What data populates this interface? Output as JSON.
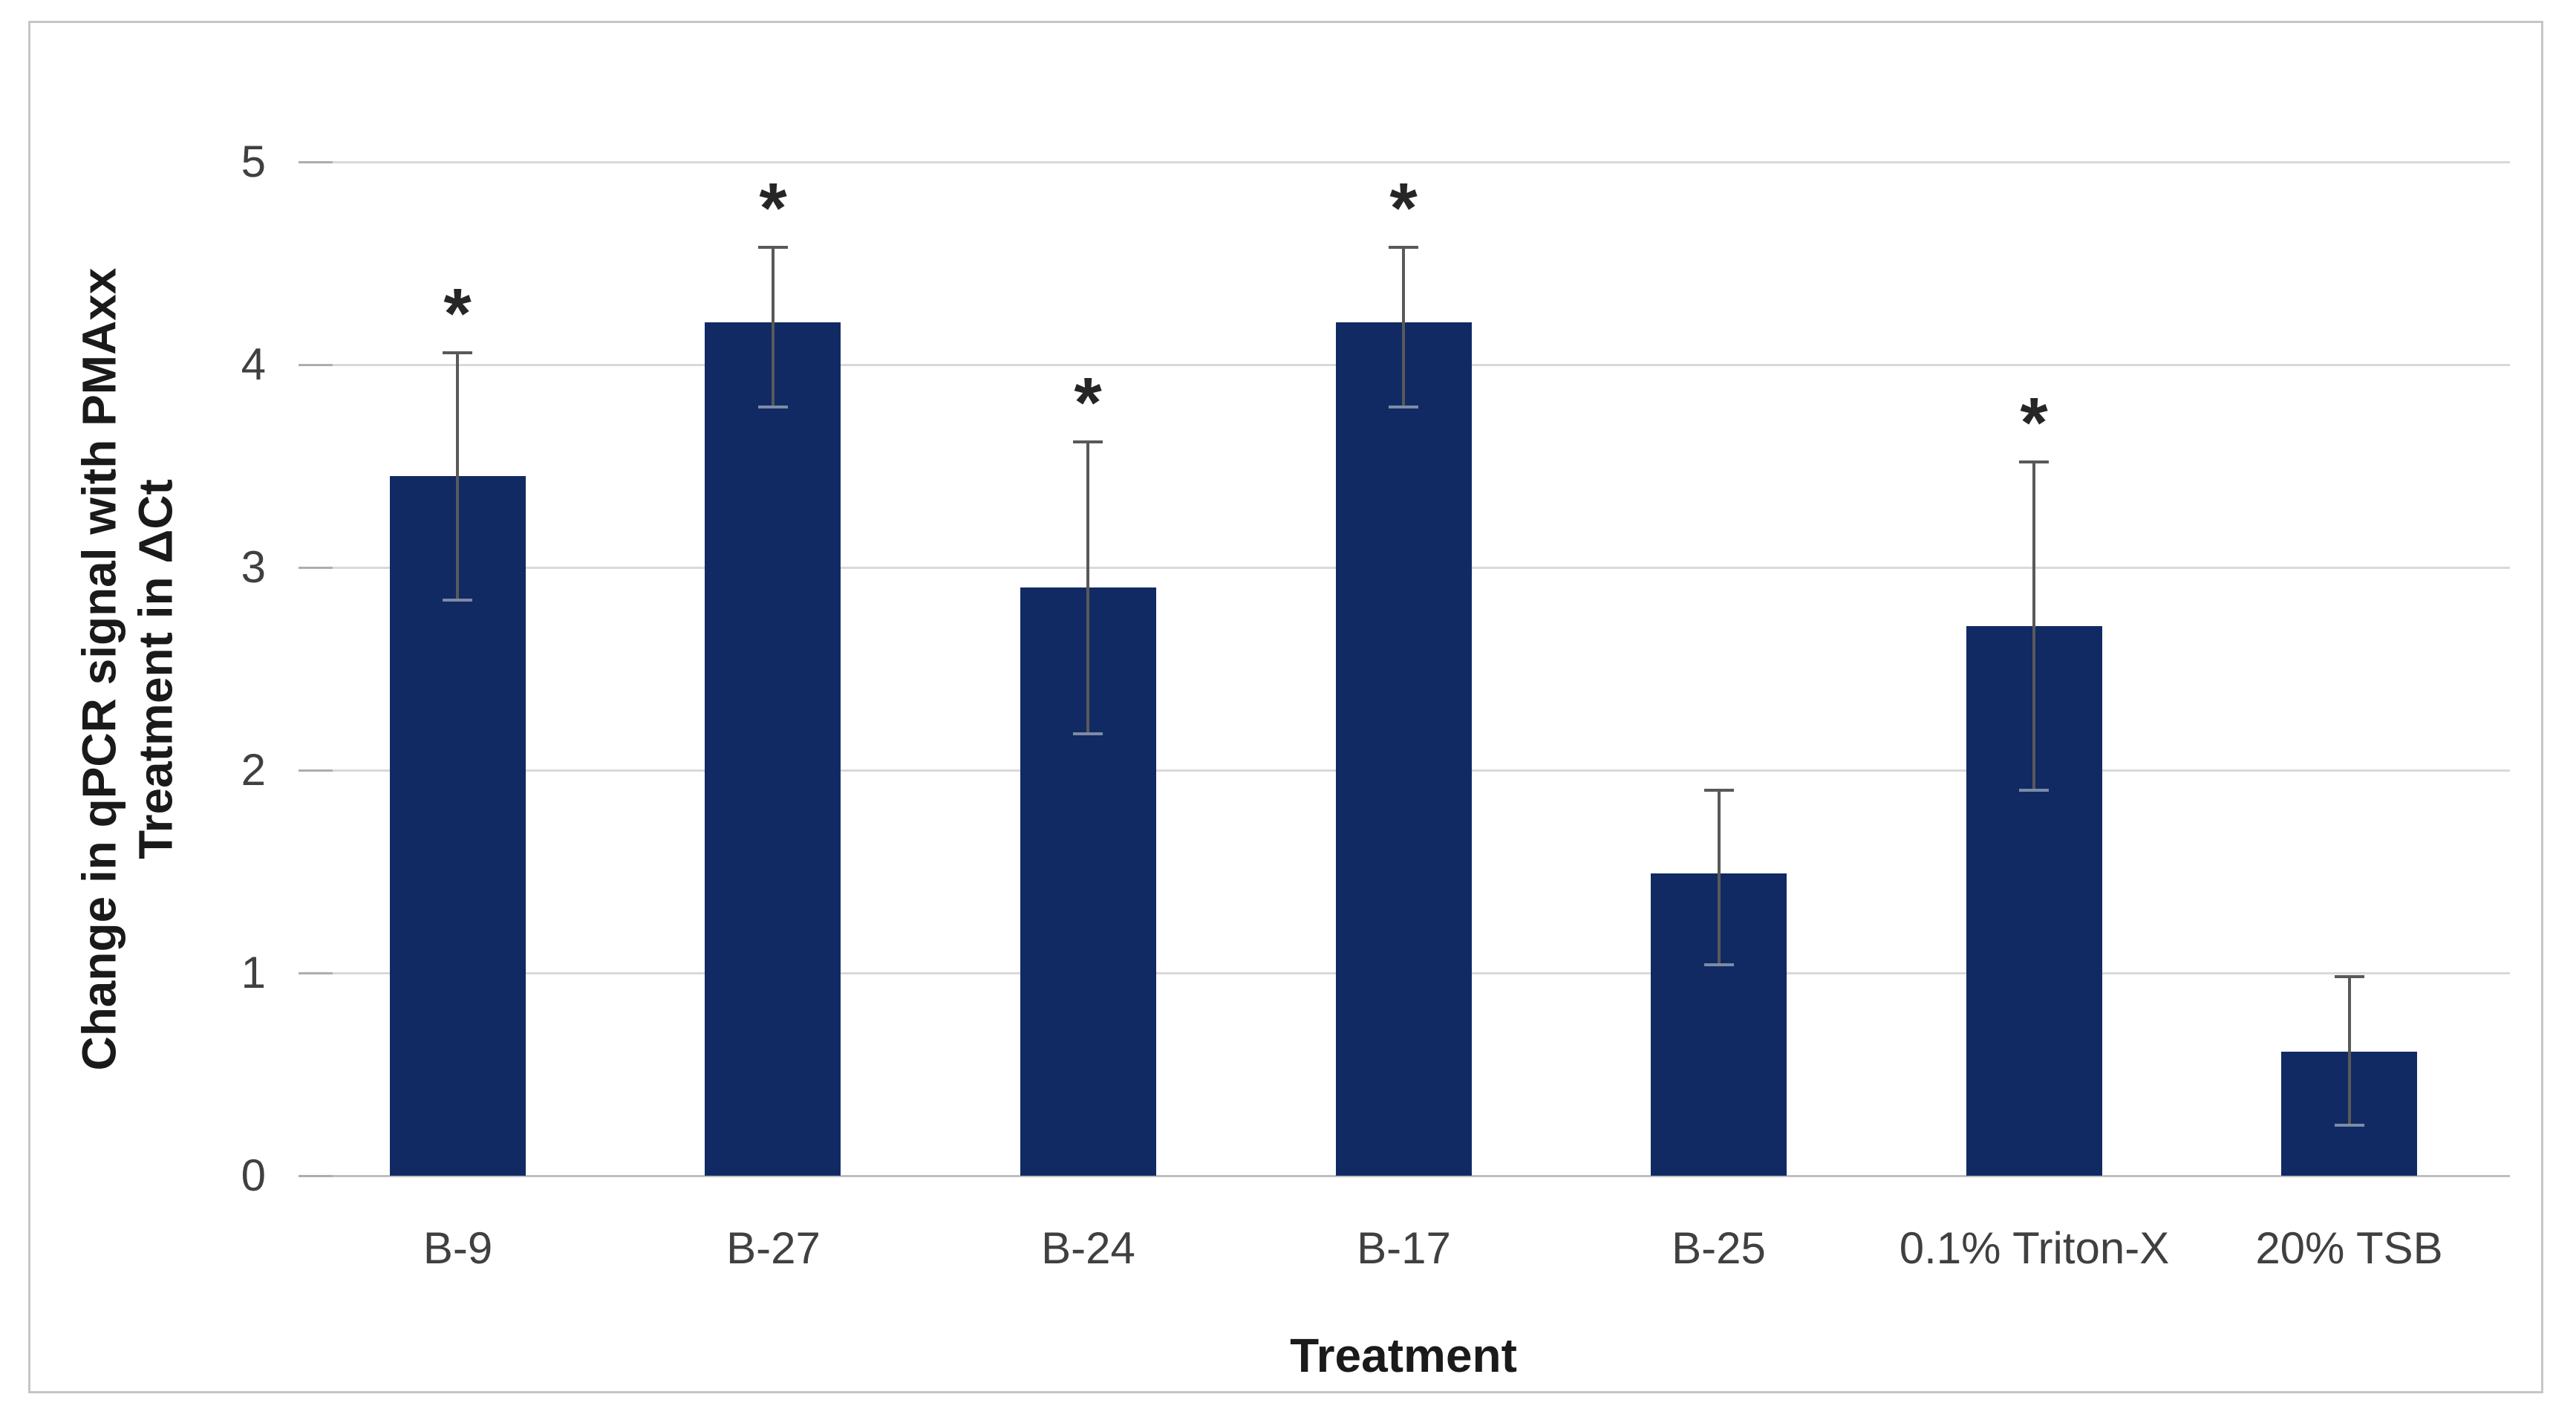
{
  "figure": {
    "background_color": "#ffffff",
    "border_color": "#c6c6c6"
  },
  "chart_data": {
    "type": "bar",
    "title": "",
    "xlabel": "Treatment",
    "ylabel": "Change in qPCR signal with PMAxx Treatment in ΔCt",
    "ylabel_display": "Change in qPCR signal with PMAxx\nTreatment in ΔCt",
    "categories": [
      "B-9",
      "B-27",
      "B-24",
      "B-17",
      "B-25",
      "0.1% Triton-X",
      "20% TSB"
    ],
    "values": [
      3.45,
      4.21,
      2.9,
      4.21,
      1.49,
      2.71,
      0.61
    ],
    "error_high": [
      4.06,
      4.58,
      3.62,
      4.58,
      1.9,
      3.52,
      0.98
    ],
    "error_low": [
      2.84,
      3.79,
      2.18,
      3.79,
      1.04,
      1.9,
      0.25
    ],
    "significant": [
      true,
      true,
      true,
      true,
      false,
      true,
      false
    ],
    "significance_marker": "*",
    "yticks": [
      0,
      1,
      2,
      3,
      4,
      5
    ],
    "ylim": [
      0,
      5
    ],
    "grid": true,
    "legend": "none",
    "bar_color": "#112a63",
    "gridline_color": "#d9d9d9",
    "axis_line_color": "#bfbfbf",
    "tick_stub_color": "#adadad",
    "error_bar_color": "#595959",
    "tick_label_color": "#404040",
    "category_label_color": "#404040",
    "title_color": "#1a1a1a",
    "marker_color": "#262626"
  }
}
